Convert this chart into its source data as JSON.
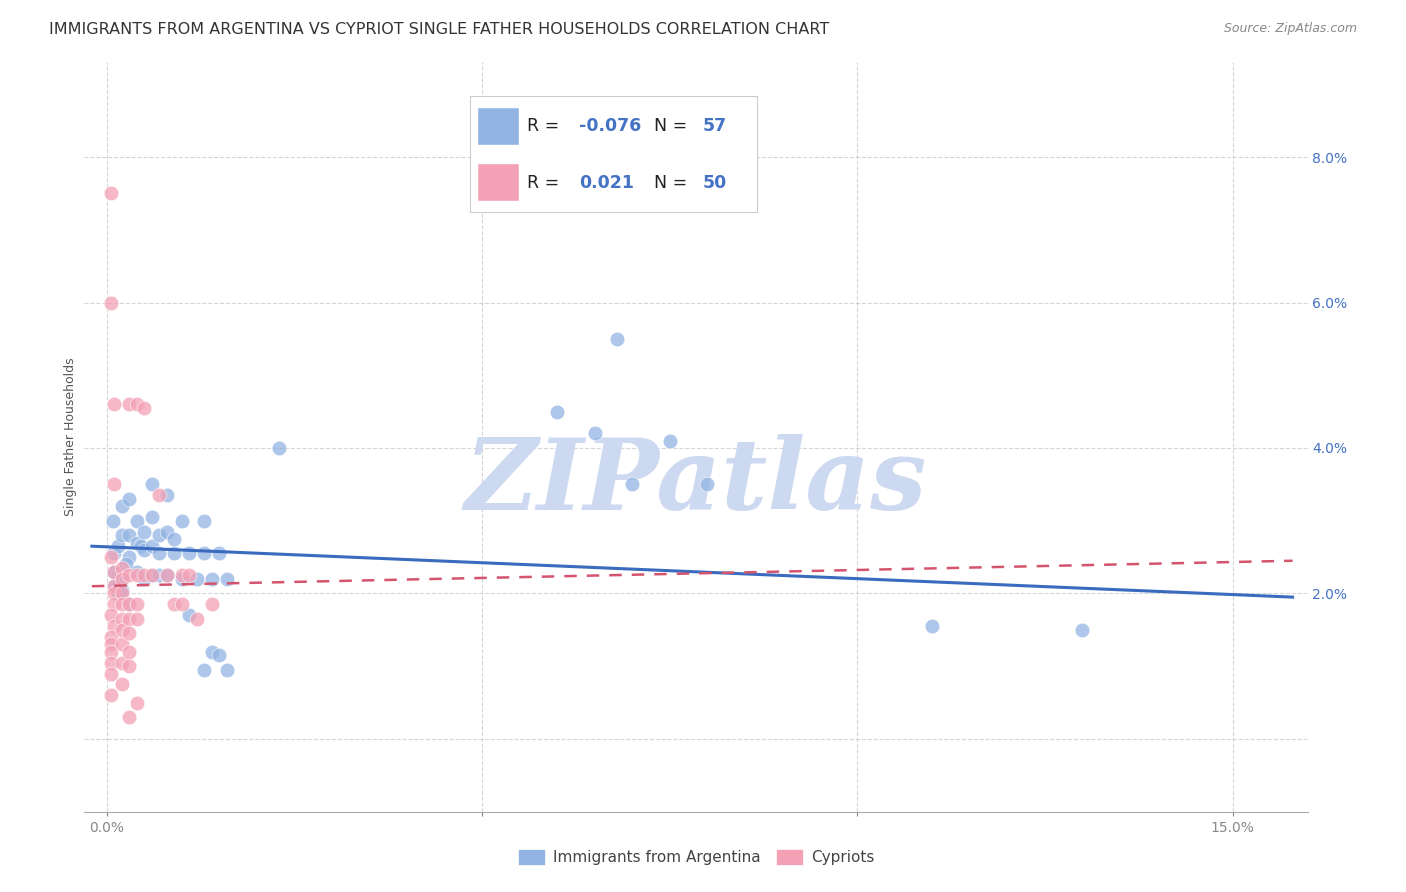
{
  "title": "IMMIGRANTS FROM ARGENTINA VS CYPRIOT SINGLE FATHER HOUSEHOLDS CORRELATION CHART",
  "source": "Source: ZipAtlas.com",
  "ylabel": "Single Father Households",
  "x_ticks": [
    0.0,
    0.05,
    0.1,
    0.15
  ],
  "x_tick_labels": [
    "0.0%",
    "",
    "",
    "15.0%"
  ],
  "y_ticks": [
    0.0,
    0.02,
    0.04,
    0.06,
    0.08
  ],
  "y_tick_labels_right": [
    "",
    "2.0%",
    "4.0%",
    "6.0%",
    "8.0%"
  ],
  "xlim": [
    -0.003,
    0.16
  ],
  "ylim": [
    -0.01,
    0.093
  ],
  "legend_labels": [
    "Immigrants from Argentina",
    "Cypriots"
  ],
  "blue_color": "#92b4e3",
  "pink_color": "#f4a0b5",
  "blue_line_color": "#3a6bbf",
  "pink_line_color": "#d4546e",
  "blue_scatter": [
    [
      0.001,
      0.0255
    ],
    [
      0.001,
      0.023
    ],
    [
      0.0015,
      0.0265
    ],
    [
      0.002,
      0.022
    ],
    [
      0.001,
      0.021
    ],
    [
      0.0015,
      0.02
    ],
    [
      0.002,
      0.0205
    ],
    [
      0.003,
      0.025
    ],
    [
      0.003,
      0.0185
    ],
    [
      0.0008,
      0.03
    ],
    [
      0.002,
      0.028
    ],
    [
      0.002,
      0.032
    ],
    [
      0.0025,
      0.024
    ],
    [
      0.003,
      0.033
    ],
    [
      0.003,
      0.028
    ],
    [
      0.004,
      0.03
    ],
    [
      0.004,
      0.027
    ],
    [
      0.0045,
      0.0265
    ],
    [
      0.004,
      0.023
    ],
    [
      0.005,
      0.0285
    ],
    [
      0.005,
      0.026
    ],
    [
      0.005,
      0.022
    ],
    [
      0.006,
      0.035
    ],
    [
      0.006,
      0.0305
    ],
    [
      0.006,
      0.0265
    ],
    [
      0.006,
      0.0225
    ],
    [
      0.007,
      0.028
    ],
    [
      0.007,
      0.0255
    ],
    [
      0.007,
      0.0225
    ],
    [
      0.008,
      0.0335
    ],
    [
      0.008,
      0.0285
    ],
    [
      0.008,
      0.0225
    ],
    [
      0.009,
      0.0275
    ],
    [
      0.009,
      0.0255
    ],
    [
      0.01,
      0.03
    ],
    [
      0.01,
      0.022
    ],
    [
      0.011,
      0.0255
    ],
    [
      0.011,
      0.017
    ],
    [
      0.012,
      0.022
    ],
    [
      0.013,
      0.03
    ],
    [
      0.013,
      0.0255
    ],
    [
      0.013,
      0.0095
    ],
    [
      0.014,
      0.022
    ],
    [
      0.014,
      0.012
    ],
    [
      0.015,
      0.0255
    ],
    [
      0.015,
      0.0115
    ],
    [
      0.016,
      0.022
    ],
    [
      0.016,
      0.0095
    ],
    [
      0.023,
      0.04
    ],
    [
      0.06,
      0.045
    ],
    [
      0.065,
      0.042
    ],
    [
      0.068,
      0.055
    ],
    [
      0.07,
      0.035
    ],
    [
      0.075,
      0.041
    ],
    [
      0.08,
      0.035
    ],
    [
      0.11,
      0.0155
    ],
    [
      0.13,
      0.015
    ]
  ],
  "pink_scatter": [
    [
      0.0005,
      0.075
    ],
    [
      0.0005,
      0.06
    ],
    [
      0.001,
      0.046
    ],
    [
      0.001,
      0.035
    ],
    [
      0.0005,
      0.025
    ],
    [
      0.001,
      0.023
    ],
    [
      0.001,
      0.021
    ],
    [
      0.001,
      0.02
    ],
    [
      0.001,
      0.0185
    ],
    [
      0.0005,
      0.017
    ],
    [
      0.001,
      0.0155
    ],
    [
      0.0005,
      0.014
    ],
    [
      0.0005,
      0.013
    ],
    [
      0.0005,
      0.012
    ],
    [
      0.0005,
      0.0105
    ],
    [
      0.0005,
      0.009
    ],
    [
      0.0005,
      0.006
    ],
    [
      0.002,
      0.0235
    ],
    [
      0.002,
      0.022
    ],
    [
      0.002,
      0.02
    ],
    [
      0.002,
      0.0185
    ],
    [
      0.002,
      0.0165
    ],
    [
      0.002,
      0.015
    ],
    [
      0.002,
      0.013
    ],
    [
      0.002,
      0.0105
    ],
    [
      0.002,
      0.0075
    ],
    [
      0.003,
      0.046
    ],
    [
      0.003,
      0.0225
    ],
    [
      0.003,
      0.0185
    ],
    [
      0.003,
      0.0165
    ],
    [
      0.003,
      0.0145
    ],
    [
      0.003,
      0.012
    ],
    [
      0.003,
      0.01
    ],
    [
      0.004,
      0.046
    ],
    [
      0.004,
      0.0225
    ],
    [
      0.004,
      0.0185
    ],
    [
      0.004,
      0.0165
    ],
    [
      0.005,
      0.0455
    ],
    [
      0.005,
      0.0225
    ],
    [
      0.006,
      0.0225
    ],
    [
      0.007,
      0.0335
    ],
    [
      0.008,
      0.0225
    ],
    [
      0.009,
      0.0185
    ],
    [
      0.01,
      0.0225
    ],
    [
      0.01,
      0.0185
    ],
    [
      0.011,
      0.0225
    ],
    [
      0.012,
      0.0165
    ],
    [
      0.014,
      0.0185
    ],
    [
      0.004,
      0.005
    ],
    [
      0.003,
      0.003
    ]
  ],
  "watermark": "ZIPatlas",
  "watermark_color": "#ccd9f0",
  "background_color": "#ffffff",
  "title_fontsize": 11.5,
  "source_fontsize": 9,
  "axis_label_fontsize": 9,
  "tick_fontsize": 10,
  "legend_fontsize": 12
}
